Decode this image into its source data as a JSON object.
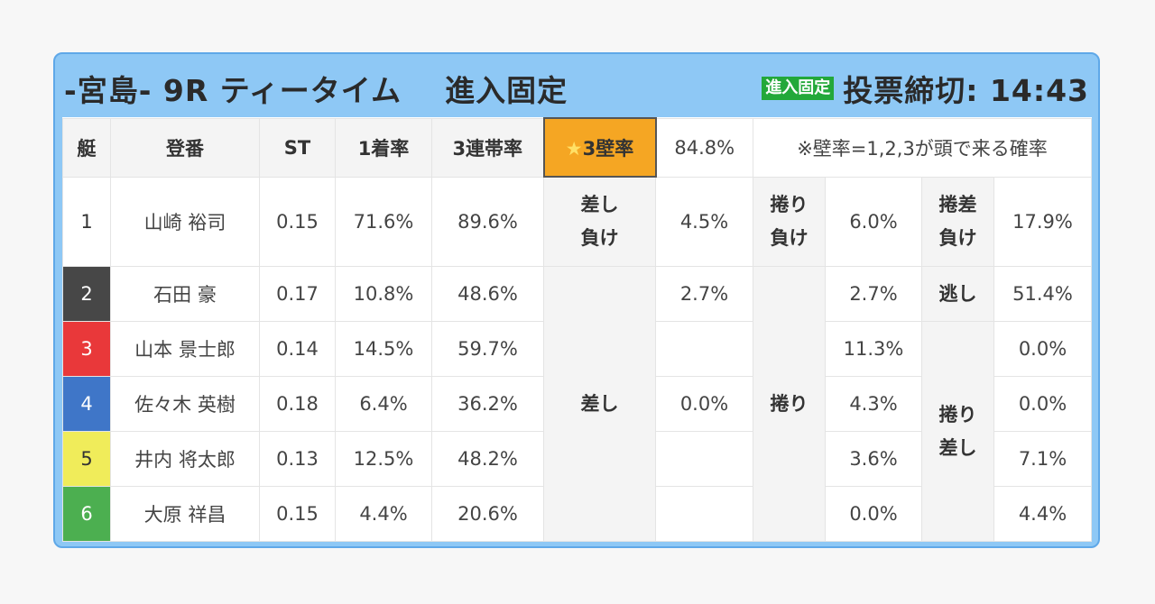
{
  "header": {
    "venue_race": "-宮島- 9R ティータイム",
    "fixed_entry": "進入固定",
    "badge": "進入固定",
    "deadline": "投票締切: 14:43"
  },
  "columns": {
    "boat": "艇",
    "racer": "登番",
    "st": "ST",
    "win_rate": "1着率",
    "top3_rate": "3連帯率",
    "wall_rate_star": "★",
    "wall_rate_label": "3壁率",
    "wall_rate_value": "84.8%",
    "note": "※壁率=1,2,3が頭で来る確率"
  },
  "rows": [
    {
      "no": "1",
      "name": "山崎 裕司",
      "st": "0.15",
      "win": "71.6%",
      "top3": "89.6%"
    },
    {
      "no": "2",
      "name": "石田 豪",
      "st": "0.17",
      "win": "10.8%",
      "top3": "48.6%"
    },
    {
      "no": "3",
      "name": "山本 景士郎",
      "st": "0.14",
      "win": "14.5%",
      "top3": "59.7%"
    },
    {
      "no": "4",
      "name": "佐々木 英樹",
      "st": "0.18",
      "win": "6.4%",
      "top3": "36.2%"
    },
    {
      "no": "5",
      "name": "井内 将太郎",
      "st": "0.13",
      "win": "12.5%",
      "top3": "48.2%"
    },
    {
      "no": "6",
      "name": "大原 祥昌",
      "st": "0.15",
      "win": "4.4%",
      "top3": "20.6%"
    }
  ],
  "patterns": {
    "sashi_make_line1": "差し",
    "sashi_make_line2": "負け",
    "sashi_make_pct": "4.5%",
    "makuri_make_line1": "捲り",
    "makuri_make_line2": "負け",
    "makuri_make_pct": "6.0%",
    "makurisashi_make_line1": "捲差",
    "makurisashi_make_line2": "負け",
    "makurisashi_make_pct": "17.9%",
    "sashi": "差し",
    "sashi_pcts": [
      "2.7%",
      "",
      "0.0%",
      "",
      ""
    ],
    "makuri": "捲り",
    "makuri_pcts": [
      "2.7%",
      "11.3%",
      "4.3%",
      "3.6%",
      "0.0%"
    ],
    "nige": "逃し",
    "nige_pct": "51.4%",
    "makurisashi_line1": "捲り",
    "makurisashi_line2": "差し",
    "makurisashi_pcts": [
      "0.0%",
      "0.0%",
      "7.1%",
      "4.4%"
    ]
  }
}
